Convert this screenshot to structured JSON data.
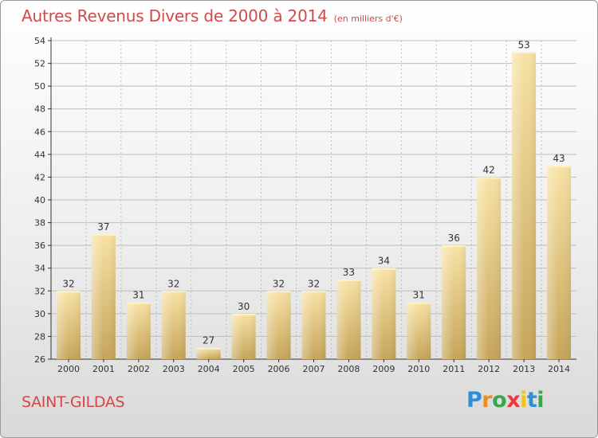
{
  "title": "Autres Revenus Divers de 2000 à 2014",
  "subtitle": "(en milliers d'€)",
  "location": "SAINT-GILDAS",
  "brand": {
    "letters": [
      "P",
      "r",
      "o",
      "x",
      "i",
      "t",
      "i"
    ],
    "colors": [
      "#2d8fd5",
      "#f08a23",
      "#35a84a",
      "#e83b3b",
      "#f2c21b",
      "#2d8fd5",
      "#35a84a"
    ]
  },
  "colors": {
    "title": "#d2494b",
    "bar_light": "#f7e0a0",
    "bar_dark": "#c9a95e",
    "axis": "#333333",
    "grid": "#bdbdbd"
  },
  "chart_data": {
    "type": "bar",
    "categories": [
      "2000",
      "2001",
      "2002",
      "2003",
      "2004",
      "2005",
      "2006",
      "2007",
      "2008",
      "2009",
      "2010",
      "2011",
      "2012",
      "2013",
      "2014"
    ],
    "values": [
      32,
      37,
      31,
      32,
      27,
      30,
      32,
      32,
      33,
      34,
      31,
      36,
      42,
      53,
      43
    ],
    "ylim": [
      26,
      54
    ],
    "yticks": [
      26,
      28,
      30,
      32,
      34,
      36,
      38,
      40,
      42,
      44,
      46,
      48,
      50,
      52,
      54
    ],
    "grid": true,
    "legend": "none"
  }
}
